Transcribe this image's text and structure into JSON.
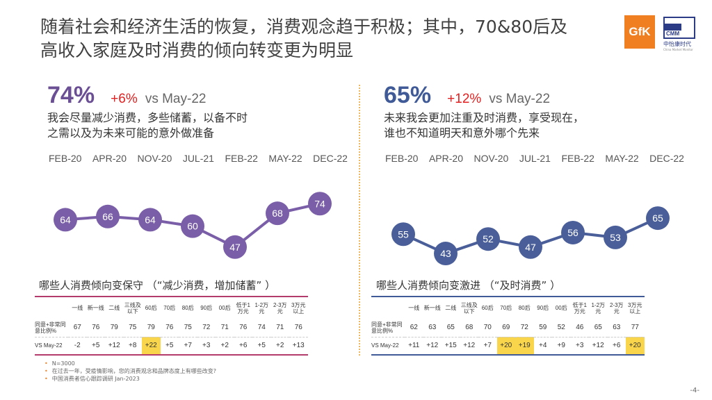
{
  "title": {
    "line1": "随着社会和经济生活的恢复，消费观念趋于积极；其中，70&80后及",
    "line2": "高收入家庭及时消费的倾向转变更为明显"
  },
  "logos": {
    "gfk": "GfK",
    "cmm": "CMM",
    "cmm_cn": "中怡康时代",
    "cmm_en": "China Market Monitor"
  },
  "left": {
    "pct": "74%",
    "change": "+6%",
    "vs": "vs May-22",
    "desc1": "我会尽量减少消费，多些储蓄，以备不时",
    "desc2": "之需以及为未来可能的意外做准备",
    "color": "#7a5fa8",
    "table_title": "哪些人消费倾向变保守 （“减少消费，增加储蓄” ）",
    "row1_label": "同意+非常同意比例%",
    "row2_label": "VS May-22",
    "row1": [
      "67",
      "76",
      "79",
      "75",
      "79",
      "76",
      "75",
      "72",
      "71",
      "76",
      "74",
      "71",
      "76"
    ],
    "row2": [
      "-2",
      "+5",
      "+12",
      "+8",
      "+22",
      "+5",
      "+7",
      "+3",
      "+2",
      "+6",
      "+5",
      "+2",
      "+13"
    ],
    "highlight": [
      4
    ]
  },
  "right": {
    "pct": "65%",
    "change": "+12%",
    "vs": "vs May-22",
    "desc1": "未来我会更加注重及时消费，享受现在，",
    "desc2": "谁也不知道明天和意外哪个先来",
    "color": "#4a5f99",
    "table_title": "哪些人消费倾向变激进 （“及时消费” ）",
    "row1_label": "同意+非常同意比例%",
    "row2_label": "VS May-22",
    "row1": [
      "62",
      "63",
      "65",
      "68",
      "70",
      "69",
      "72",
      "59",
      "52",
      "46",
      "65",
      "63",
      "77"
    ],
    "row2": [
      "+11",
      "+12",
      "+15",
      "+12",
      "+7",
      "+20",
      "+19",
      "+4",
      "+9",
      "+3",
      "+12",
      "+6",
      "+20"
    ],
    "highlight": [
      5,
      6,
      12
    ]
  },
  "dates": [
    "FEB-20",
    "APR-20",
    "NOV-20",
    "JUL-21",
    "FEB-22",
    "MAY-22",
    "DEC-22"
  ],
  "table_headers": [
    "一线",
    "新一线",
    "二线",
    "三线及以下",
    "60后",
    "70后",
    "80后",
    "90后",
    "00后",
    "低于1万元",
    "1-2万元",
    "2-3万元",
    "3万元以上"
  ],
  "chart_data": [
    {
      "type": "line",
      "x": [
        "FEB-20",
        "APR-20",
        "NOV-20",
        "JUL-21",
        "FEB-22",
        "MAY-22",
        "DEC-22"
      ],
      "series": [
        {
          "values": [
            64,
            66,
            64,
            60,
            47,
            68,
            74
          ]
        }
      ]
    },
    {
      "type": "line",
      "x": [
        "FEB-20",
        "APR-20",
        "NOV-20",
        "JUL-21",
        "FEB-22",
        "MAY-22",
        "DEC-22"
      ],
      "series": [
        {
          "values": [
            55,
            43,
            52,
            47,
            56,
            53,
            65
          ]
        }
      ]
    }
  ],
  "notes": [
    "N=3000",
    "在过去一年，受疫情影响，您的消费观念和品牌态度上有哪些改变?",
    "中国消费者信心跟踪调研 Jan-2023"
  ],
  "page": "-4-"
}
